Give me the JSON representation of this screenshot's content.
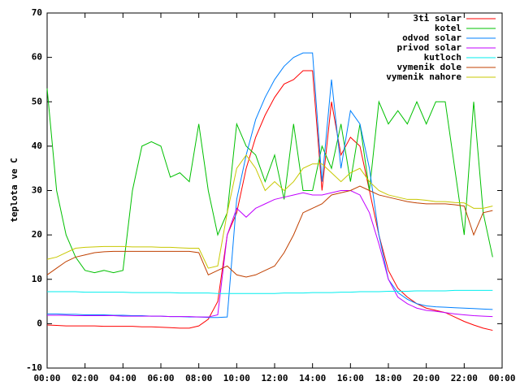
{
  "chart_data": {
    "type": "line",
    "y_label": "teplota ve C",
    "x": [
      0,
      0.5,
      1,
      1.5,
      2,
      2.5,
      3,
      3.5,
      4,
      4.5,
      5,
      5.5,
      6,
      6.5,
      7,
      7.5,
      8,
      8.5,
      9,
      9.5,
      10,
      10.5,
      11,
      11.5,
      12,
      12.5,
      13,
      13.5,
      14,
      14.5,
      15,
      15.5,
      16,
      16.5,
      17,
      17.5,
      18,
      18.5,
      19,
      19.5,
      20,
      20.5,
      21,
      21.5,
      22,
      22.5,
      23,
      23.5
    ],
    "xlim": [
      0,
      24
    ],
    "xticks": [
      {
        "value": 0,
        "label": "00:00"
      },
      {
        "value": 2,
        "label": "02:00"
      },
      {
        "value": 4,
        "label": "04:00"
      },
      {
        "value": 6,
        "label": "06:00"
      },
      {
        "value": 8,
        "label": "08:00"
      },
      {
        "value": 10,
        "label": "10:00"
      },
      {
        "value": 12,
        "label": "12:00"
      },
      {
        "value": 14,
        "label": "14:00"
      },
      {
        "value": 16,
        "label": "16:00"
      },
      {
        "value": 18,
        "label": "18:00"
      },
      {
        "value": 20,
        "label": "20:00"
      },
      {
        "value": 22,
        "label": "22:00"
      },
      {
        "value": 24,
        "label": "00:00"
      }
    ],
    "ylim": [
      -10,
      70
    ],
    "yticks": [
      -10,
      0,
      10,
      20,
      30,
      40,
      50,
      60,
      70
    ],
    "legend": "top-right",
    "series": [
      {
        "name": "3ti solar",
        "color": "#ff0000",
        "values": [
          -0.3,
          -0.4,
          -0.5,
          -0.5,
          -0.5,
          -0.5,
          -0.6,
          -0.6,
          -0.6,
          -0.6,
          -0.7,
          -0.7,
          -0.8,
          -0.9,
          -1,
          -1,
          -0.5,
          1,
          5,
          20,
          25,
          35,
          42,
          47,
          51,
          54,
          55,
          57,
          57,
          30,
          50,
          38,
          42,
          40,
          30,
          20,
          12,
          8,
          6,
          4.5,
          3.5,
          3,
          2.5,
          1.5,
          0.5,
          -0.3,
          -1,
          -1.5
        ]
      },
      {
        "name": "kotel",
        "color": "#00c000",
        "values": [
          53,
          30,
          20,
          15,
          12,
          11.5,
          12,
          11.5,
          12,
          30,
          40,
          41,
          40,
          33,
          34,
          32,
          45,
          30,
          20,
          25,
          45,
          40,
          38,
          32,
          38,
          28,
          45,
          30,
          30,
          40,
          35,
          45,
          32,
          45,
          30,
          50,
          45,
          48,
          45,
          50,
          45,
          50,
          50,
          35,
          20,
          50,
          25,
          15
        ]
      },
      {
        "name": "odvod solar",
        "color": "#0080ff",
        "values": [
          2.2,
          2.2,
          2.1,
          2.1,
          2,
          2,
          2,
          1.9,
          1.9,
          1.8,
          1.8,
          1.7,
          1.7,
          1.6,
          1.6,
          1.5,
          1.5,
          1.4,
          1.4,
          1.5,
          28,
          38,
          46,
          51,
          55,
          58,
          60,
          61,
          61,
          32,
          55,
          35,
          48,
          45,
          35,
          20,
          10,
          7,
          5.5,
          4.5,
          4,
          3.8,
          3.7,
          3.6,
          3.5,
          3.4,
          3.3,
          3.2
        ]
      },
      {
        "name": "privod solar",
        "color": "#c000ff",
        "values": [
          1.9,
          1.9,
          1.9,
          1.8,
          1.8,
          1.8,
          1.8,
          1.8,
          1.7,
          1.7,
          1.7,
          1.7,
          1.7,
          1.6,
          1.6,
          1.6,
          1.5,
          1.5,
          2,
          20,
          26,
          24,
          26,
          27,
          28,
          28.5,
          29,
          29.5,
          29,
          29,
          29.5,
          30,
          30,
          29,
          25,
          18,
          10,
          6,
          4.5,
          3.5,
          3,
          2.8,
          2.5,
          2.2,
          2,
          1.8,
          1.7,
          1.6
        ]
      },
      {
        "name": "kutloch",
        "color": "#00eeee",
        "values": [
          7.2,
          7.2,
          7.2,
          7.2,
          7.1,
          7.1,
          7.1,
          7.1,
          7.1,
          7,
          7,
          7,
          7,
          7,
          6.9,
          6.9,
          6.9,
          6.9,
          6.8,
          6.8,
          6.8,
          6.8,
          6.8,
          6.8,
          6.8,
          6.9,
          6.9,
          6.9,
          7,
          7,
          7,
          7.1,
          7.1,
          7.2,
          7.2,
          7.2,
          7.3,
          7.3,
          7.3,
          7.4,
          7.4,
          7.4,
          7.4,
          7.5,
          7.5,
          7.5,
          7.5,
          7.5
        ]
      },
      {
        "name": "vymenik dole",
        "color": "#c04000",
        "values": [
          11,
          12.5,
          14,
          15,
          15.5,
          16,
          16.2,
          16.3,
          16.3,
          16.3,
          16.3,
          16.3,
          16.3,
          16.3,
          16.3,
          16.3,
          16,
          11,
          12,
          13,
          11,
          10.5,
          11,
          12,
          13,
          16,
          20,
          25,
          26,
          27,
          29,
          29.5,
          30,
          31,
          30,
          29,
          28.5,
          28,
          27.5,
          27.2,
          27,
          27,
          27,
          26.8,
          26.5,
          20,
          25,
          25.5
        ]
      },
      {
        "name": "vymenik nahore",
        "color": "#c8c800",
        "values": [
          14.5,
          15,
          16,
          17,
          17.2,
          17.3,
          17.4,
          17.4,
          17.4,
          17.3,
          17.3,
          17.3,
          17.2,
          17.2,
          17.1,
          17,
          17,
          12.5,
          13,
          25,
          35,
          38,
          35,
          30,
          32,
          30,
          32,
          35,
          36,
          36,
          34,
          32,
          34,
          35,
          32,
          30,
          29,
          28.5,
          28,
          28,
          27.8,
          27.5,
          27.5,
          27.3,
          27.2,
          26,
          26,
          26.5
        ]
      }
    ]
  }
}
